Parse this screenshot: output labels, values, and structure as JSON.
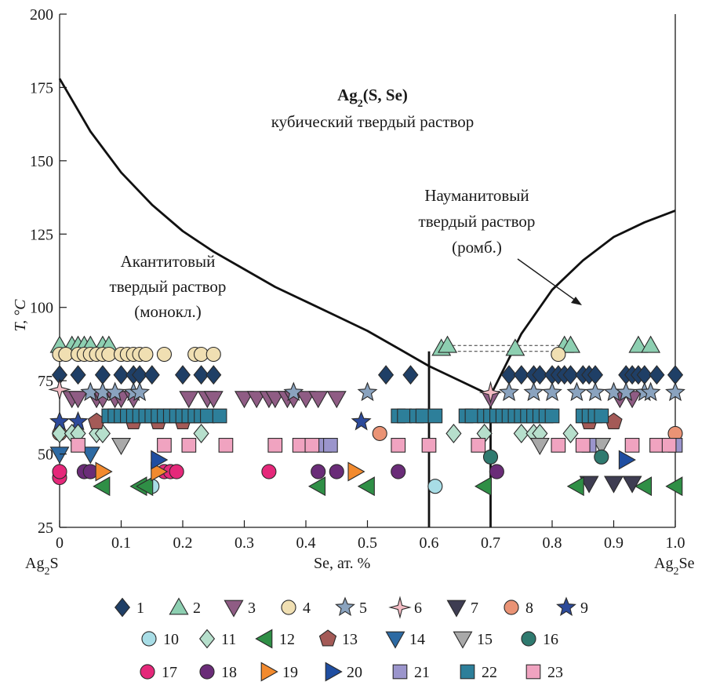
{
  "chart_data": {
    "type": "scatter",
    "title": "",
    "xlabel": "Se, ат. %",
    "ylabel": "T, °C",
    "xlim": [
      0,
      1
    ],
    "ylim": [
      25,
      200
    ],
    "xticks": [
      "0",
      "0.1",
      "0.2",
      "0.3",
      "0.4",
      "0.5",
      "0.6",
      "0.7",
      "0.8",
      "0.9",
      "1.0"
    ],
    "yticks": [
      "25",
      "50",
      "75",
      "100",
      "125",
      "150",
      "175",
      "200"
    ],
    "grid": false,
    "end_labels": {
      "left": "Ag2S",
      "right": "Ag2Se"
    },
    "annotations": {
      "cubic_title": "Ag2(S, Se)",
      "cubic_sub": "кубический твердый раствор",
      "acanthite": [
        "Акантитовый",
        "твердый раствор",
        "(монокл.)"
      ],
      "naumannite": [
        "Науманитовый",
        "твердый раствор",
        "(ромб.)"
      ]
    },
    "boundaries": [
      {
        "name": "cubic-acanthite boundary",
        "x": [
          0,
          0.05,
          0.1,
          0.15,
          0.2,
          0.25,
          0.3,
          0.35,
          0.4,
          0.45,
          0.5,
          0.55,
          0.6,
          0.65,
          0.7
        ],
        "y": [
          178,
          160,
          146,
          135,
          126,
          119,
          113,
          107,
          102,
          97,
          92,
          86,
          80,
          75,
          70
        ]
      },
      {
        "name": "cubic-naumannite boundary",
        "x": [
          0.7,
          0.75,
          0.8,
          0.85,
          0.9,
          0.95,
          1.0
        ],
        "y": [
          70,
          91,
          106,
          116,
          124,
          129,
          133
        ]
      },
      {
        "name": "acanthite limit",
        "x": [
          0.6,
          0.6
        ],
        "y": [
          25,
          85
        ]
      },
      {
        "name": "naumannite limit",
        "x": [
          0.7,
          0.7
        ],
        "y": [
          25,
          70
        ]
      }
    ],
    "dashed_lines": [
      {
        "x": [
          0.62,
          0.82
        ],
        "y": [
          87,
          87
        ]
      },
      {
        "x": [
          0.62,
          0.82
        ],
        "y": [
          85,
          85
        ]
      }
    ],
    "legend": [
      "1",
      "2",
      "3",
      "4",
      "5",
      "6",
      "7",
      "8",
      "9",
      "10",
      "11",
      "12",
      "13",
      "14",
      "15",
      "16",
      "17",
      "18",
      "19",
      "20",
      "21",
      "22",
      "23"
    ],
    "series": [
      {
        "name": "1",
        "shape": "diamond",
        "color": "#1f3f66",
        "points": [
          [
            0,
            77
          ],
          [
            0.03,
            77
          ],
          [
            0.07,
            77
          ],
          [
            0.1,
            77
          ],
          [
            0.12,
            77
          ],
          [
            0.13,
            77
          ],
          [
            0.15,
            77
          ],
          [
            0.2,
            77
          ],
          [
            0.23,
            77
          ],
          [
            0.25,
            77
          ],
          [
            0.53,
            77
          ],
          [
            0.57,
            77
          ],
          [
            0.73,
            77
          ],
          [
            0.75,
            77
          ],
          [
            0.77,
            77
          ],
          [
            0.78,
            77
          ],
          [
            0.8,
            77
          ],
          [
            0.81,
            77
          ],
          [
            0.82,
            77
          ],
          [
            0.83,
            77
          ],
          [
            0.85,
            77
          ],
          [
            0.86,
            77
          ],
          [
            0.87,
            77
          ],
          [
            0.92,
            77
          ],
          [
            0.93,
            77
          ],
          [
            0.94,
            77
          ],
          [
            0.95,
            77
          ],
          [
            0.97,
            77
          ],
          [
            1.0,
            77
          ]
        ]
      },
      {
        "name": "2",
        "shape": "triangle-up",
        "color": "#8dcfb1",
        "points": [
          [
            0,
            87
          ],
          [
            0.02,
            87
          ],
          [
            0.03,
            87
          ],
          [
            0.04,
            87
          ],
          [
            0.05,
            87
          ],
          [
            0.07,
            87
          ],
          [
            0.08,
            87
          ],
          [
            0.62,
            86
          ],
          [
            0.63,
            87
          ],
          [
            0.74,
            86
          ],
          [
            0.82,
            87
          ],
          [
            0.83,
            87
          ],
          [
            0.94,
            87
          ],
          [
            0.96,
            87
          ]
        ]
      },
      {
        "name": "3",
        "shape": "triangle-down",
        "color": "#8f5c84",
        "points": [
          [
            0.02,
            69
          ],
          [
            0.03,
            69
          ],
          [
            0.06,
            69
          ],
          [
            0.07,
            69
          ],
          [
            0.09,
            69
          ],
          [
            0.1,
            69
          ],
          [
            0.12,
            69
          ],
          [
            0.21,
            69
          ],
          [
            0.24,
            69
          ],
          [
            0.25,
            69
          ],
          [
            0.3,
            69
          ],
          [
            0.32,
            69
          ],
          [
            0.34,
            69
          ],
          [
            0.35,
            69
          ],
          [
            0.37,
            69
          ],
          [
            0.38,
            69
          ],
          [
            0.4,
            69
          ],
          [
            0.42,
            69
          ],
          [
            0.45,
            69
          ],
          [
            0.7,
            69
          ],
          [
            0.91,
            69
          ],
          [
            0.93,
            69
          ]
        ]
      },
      {
        "name": "4",
        "shape": "circle",
        "color": "#f0dfb2",
        "points": [
          [
            0,
            84
          ],
          [
            0.01,
            84
          ],
          [
            0.03,
            84
          ],
          [
            0.04,
            84
          ],
          [
            0.05,
            84
          ],
          [
            0.06,
            84
          ],
          [
            0.07,
            84
          ],
          [
            0.08,
            84
          ],
          [
            0.1,
            84
          ],
          [
            0.11,
            84
          ],
          [
            0.12,
            84
          ],
          [
            0.13,
            84
          ],
          [
            0.14,
            84
          ],
          [
            0.17,
            84
          ],
          [
            0.22,
            84
          ],
          [
            0.23,
            84
          ],
          [
            0.25,
            84
          ],
          [
            0.81,
            84
          ]
        ]
      },
      {
        "name": "5",
        "shape": "star",
        "color": "#8aa3bf",
        "points": [
          [
            0.05,
            71
          ],
          [
            0.07,
            71
          ],
          [
            0.09,
            71
          ],
          [
            0.12,
            71
          ],
          [
            0.13,
            71
          ],
          [
            0.38,
            71
          ],
          [
            0.5,
            71
          ],
          [
            0.73,
            71
          ],
          [
            0.77,
            71
          ],
          [
            0.8,
            71
          ],
          [
            0.84,
            71
          ],
          [
            0.87,
            71
          ],
          [
            0.9,
            71
          ],
          [
            0.92,
            71
          ],
          [
            0.95,
            71
          ],
          [
            0.96,
            71
          ],
          [
            1.0,
            71
          ]
        ]
      },
      {
        "name": "6",
        "shape": "star4",
        "color": "#f4bcc4",
        "points": [
          [
            0,
            72
          ],
          [
            0.7,
            71
          ]
        ]
      },
      {
        "name": "7",
        "shape": "triangle-down",
        "color": "#3e3d52",
        "points": [
          [
            0.86,
            40
          ],
          [
            0.9,
            40
          ],
          [
            0.93,
            40
          ]
        ]
      },
      {
        "name": "8",
        "shape": "circle",
        "color": "#ea9375",
        "points": [
          [
            0,
            57
          ],
          [
            0.52,
            57
          ],
          [
            1.0,
            57
          ]
        ]
      },
      {
        "name": "9",
        "shape": "star",
        "color": "#2c4a9a",
        "points": [
          [
            0,
            61
          ],
          [
            0.03,
            61
          ],
          [
            0.49,
            61
          ]
        ]
      },
      {
        "name": "10",
        "shape": "circle",
        "color": "#a8dde6",
        "points": [
          [
            0.15,
            39
          ],
          [
            0.61,
            39
          ]
        ]
      },
      {
        "name": "11",
        "shape": "diamond",
        "color": "#b6dfcc",
        "points": [
          [
            0,
            57
          ],
          [
            0.02,
            57
          ],
          [
            0.03,
            57
          ],
          [
            0.06,
            57
          ],
          [
            0.07,
            57
          ],
          [
            0.23,
            57
          ],
          [
            0.64,
            57
          ],
          [
            0.69,
            57
          ],
          [
            0.75,
            57
          ],
          [
            0.77,
            57
          ],
          [
            0.78,
            57
          ],
          [
            0.83,
            57
          ]
        ]
      },
      {
        "name": "12",
        "shape": "triangle-left",
        "color": "#2f8f46",
        "points": [
          [
            0.07,
            39
          ],
          [
            0.13,
            39
          ],
          [
            0.14,
            39
          ],
          [
            0.42,
            39
          ],
          [
            0.5,
            39
          ],
          [
            0.69,
            39
          ],
          [
            0.84,
            39
          ],
          [
            0.95,
            39
          ],
          [
            1.0,
            39
          ]
        ]
      },
      {
        "name": "13",
        "shape": "pentagon",
        "color": "#a45a57",
        "points": [
          [
            0.06,
            61
          ],
          [
            0.12,
            61
          ],
          [
            0.16,
            61
          ],
          [
            0.2,
            61
          ],
          [
            0.86,
            61
          ],
          [
            0.9,
            61
          ]
        ]
      },
      {
        "name": "14",
        "shape": "triangle-down",
        "color": "#2d6aa3",
        "points": [
          [
            0,
            50
          ],
          [
            0.05,
            50
          ]
        ]
      },
      {
        "name": "15",
        "shape": "triangle-down",
        "color": "#a9a9a9",
        "points": [
          [
            0.1,
            53
          ],
          [
            0.78,
            53
          ],
          [
            0.88,
            53
          ]
        ]
      },
      {
        "name": "16",
        "shape": "circle",
        "color": "#2f7a6f",
        "points": [
          [
            0.7,
            49
          ],
          [
            0.88,
            49
          ]
        ]
      },
      {
        "name": "17",
        "shape": "circle",
        "color": "#e5287a",
        "points": [
          [
            0,
            42
          ],
          [
            0,
            44
          ],
          [
            0.17,
            44
          ],
          [
            0.18,
            44
          ],
          [
            0.19,
            44
          ],
          [
            0.34,
            44
          ]
        ]
      },
      {
        "name": "18",
        "shape": "circle",
        "color": "#6a2c78",
        "points": [
          [
            0.04,
            44
          ],
          [
            0.05,
            44
          ],
          [
            0.42,
            44
          ],
          [
            0.45,
            44
          ],
          [
            0.55,
            44
          ],
          [
            0.71,
            44
          ]
        ]
      },
      {
        "name": "19",
        "shape": "triangle-right",
        "color": "#f28a2e",
        "points": [
          [
            0.07,
            44
          ],
          [
            0.16,
            44
          ],
          [
            0.48,
            44
          ]
        ]
      },
      {
        "name": "20",
        "shape": "triangle-right",
        "color": "#1f4ea1",
        "points": [
          [
            0.16,
            48
          ],
          [
            0.92,
            48
          ]
        ]
      },
      {
        "name": "21",
        "shape": "square",
        "color": "#9b95cc",
        "points": [
          [
            0.43,
            53
          ],
          [
            0.44,
            53
          ],
          [
            0.86,
            53
          ],
          [
            1.0,
            53
          ]
        ]
      },
      {
        "name": "22",
        "shape": "square",
        "color": "#2d7f9a",
        "points": [
          [
            0.08,
            63
          ],
          [
            0.09,
            63
          ],
          [
            0.1,
            63
          ],
          [
            0.11,
            63
          ],
          [
            0.12,
            63
          ],
          [
            0.13,
            63
          ],
          [
            0.14,
            63
          ],
          [
            0.15,
            63
          ],
          [
            0.16,
            63
          ],
          [
            0.17,
            63
          ],
          [
            0.18,
            63
          ],
          [
            0.19,
            63
          ],
          [
            0.2,
            63
          ],
          [
            0.21,
            63
          ],
          [
            0.22,
            63
          ],
          [
            0.23,
            63
          ],
          [
            0.24,
            63
          ],
          [
            0.26,
            63
          ],
          [
            0.55,
            63
          ],
          [
            0.56,
            63
          ],
          [
            0.58,
            63
          ],
          [
            0.59,
            63
          ],
          [
            0.61,
            63
          ],
          [
            0.66,
            63
          ],
          [
            0.67,
            63
          ],
          [
            0.69,
            63
          ],
          [
            0.7,
            63
          ],
          [
            0.71,
            63
          ],
          [
            0.72,
            63
          ],
          [
            0.73,
            63
          ],
          [
            0.74,
            63
          ],
          [
            0.75,
            63
          ],
          [
            0.76,
            63
          ],
          [
            0.77,
            63
          ],
          [
            0.78,
            63
          ],
          [
            0.79,
            63
          ],
          [
            0.8,
            63
          ],
          [
            0.85,
            63
          ],
          [
            0.86,
            63
          ],
          [
            0.87,
            63
          ],
          [
            0.88,
            63
          ]
        ]
      },
      {
        "name": "23",
        "shape": "square",
        "color": "#f0a3c0",
        "points": [
          [
            0.03,
            53
          ],
          [
            0.17,
            53
          ],
          [
            0.21,
            53
          ],
          [
            0.27,
            53
          ],
          [
            0.35,
            53
          ],
          [
            0.39,
            53
          ],
          [
            0.41,
            53
          ],
          [
            0.55,
            53
          ],
          [
            0.6,
            53
          ],
          [
            0.68,
            53
          ],
          [
            0.81,
            53
          ],
          [
            0.85,
            53
          ],
          [
            0.93,
            53
          ],
          [
            0.97,
            53
          ],
          [
            0.99,
            53
          ]
        ]
      }
    ]
  }
}
